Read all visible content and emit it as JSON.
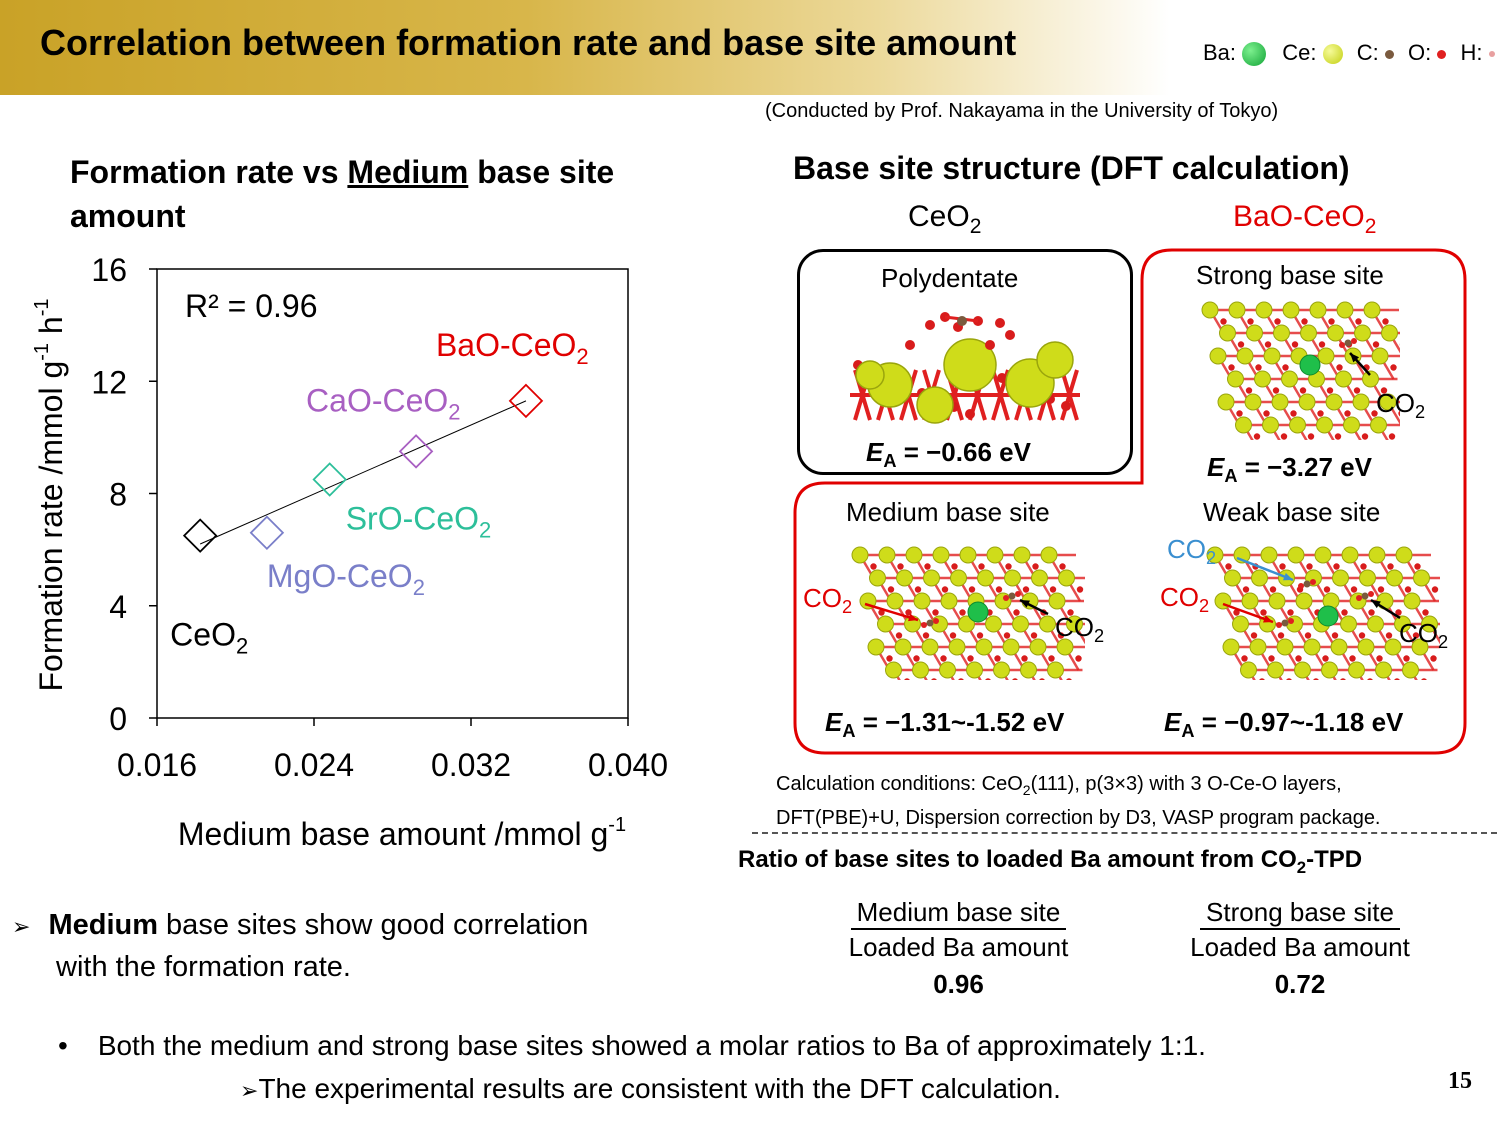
{
  "title": "Correlation between formation rate and base site amount",
  "legend": {
    "ba": "Ba:",
    "ce": "Ce:",
    "c": "C:",
    "o": "O:",
    "h": "H:",
    "colors": {
      "ba": "#1fbf4a",
      "ce": "#d7e21a",
      "c": "#8b6a4c",
      "o": "#e02020",
      "h": "#f2b8b8"
    }
  },
  "credit": "(Conducted by Prof. Nakayama in the University of Tokyo)",
  "left_heading": {
    "pre": "Formation rate vs ",
    "underlined": "Medium",
    "post": " base site",
    "line2": "amount"
  },
  "chart_data": {
    "type": "scatter",
    "xlabel": "Medium base amount /mmol g",
    "xlabel_sup": "-1",
    "ylabel": "Formation rate /mmol g",
    "ylabel_sup1": "-1",
    "ylabel_mid": " h",
    "ylabel_sup2": "-1",
    "xlim": [
      0.016,
      0.04
    ],
    "ylim": [
      0,
      16
    ],
    "xticks": [
      "0.016",
      "0.024",
      "0.032",
      "0.040"
    ],
    "yticks": [
      "0",
      "4",
      "8",
      "12",
      "16"
    ],
    "r2": "R² = 0.96",
    "points": [
      {
        "label": "CeO",
        "sub": "2",
        "x": 0.0182,
        "y": 6.5,
        "color": "#000000"
      },
      {
        "label": "MgO-CeO",
        "sub": "2",
        "x": 0.0216,
        "y": 6.6,
        "color": "#7a7fc9"
      },
      {
        "label": "SrO-CeO",
        "sub": "2",
        "x": 0.0248,
        "y": 8.5,
        "color": "#2dbf9a"
      },
      {
        "label": "CaO-CeO",
        "sub": "2",
        "x": 0.0292,
        "y": 9.5,
        "color": "#a85fc2"
      },
      {
        "label": "BaO-CeO",
        "sub": "2",
        "x": 0.0348,
        "y": 11.3,
        "color": "#e00000"
      }
    ],
    "trendline": {
      "x": [
        0.0182,
        0.0348
      ],
      "y": [
        6.2,
        11.3
      ]
    }
  },
  "bullet": {
    "bold": "Medium",
    "text": " base sites show good correlation",
    "line2": "with the formation rate."
  },
  "right_heading": "Base site structure (DFT calculation)",
  "col_ceo2": {
    "main": "CeO",
    "sub": "2"
  },
  "col_bao": {
    "main": "BaO-CeO",
    "sub": "2"
  },
  "panels": {
    "poly": {
      "title": "Polydentate",
      "ea": " = −0.66 eV"
    },
    "strong": {
      "title": "Strong base site",
      "ea": " = −3.27 eV"
    },
    "medium": {
      "title": "Medium base site",
      "ea": " = −1.31~-1.52 eV"
    },
    "weak": {
      "title": "Weak base site",
      "ea": " = −0.97~-1.18 eV"
    },
    "ea_letter": "E",
    "ea_sub": "A"
  },
  "co2": {
    "main": "CO",
    "sub": "2"
  },
  "calc": {
    "line1a": "Calculation conditions: CeO",
    "line1sub": "2",
    "line1b": "(111), p(3×3) with 3 O-Ce-O layers,",
    "line2": "DFT(PBE)+U, Dispersion correction by D3, VASP program package."
  },
  "ratio": {
    "heading_a": "Ratio of base sites to loaded Ba amount from CO",
    "heading_sub": "2",
    "heading_b": "-TPD",
    "med_num": "Medium base site",
    "med_den": "Loaded Ba amount",
    "med_val": "0.96",
    "str_num": "Strong base site",
    "str_den": "Loaded Ba amount",
    "str_val": "0.72"
  },
  "conclusion": {
    "bullet_char": "•",
    "line1": "Both the medium and strong base sites showed a molar ratios to Ba of approximately 1:1.",
    "arrow": "➢",
    "line2": "The experimental results are consistent with the DFT calculation."
  },
  "bullet_arrow": "➢",
  "page_number": "15"
}
